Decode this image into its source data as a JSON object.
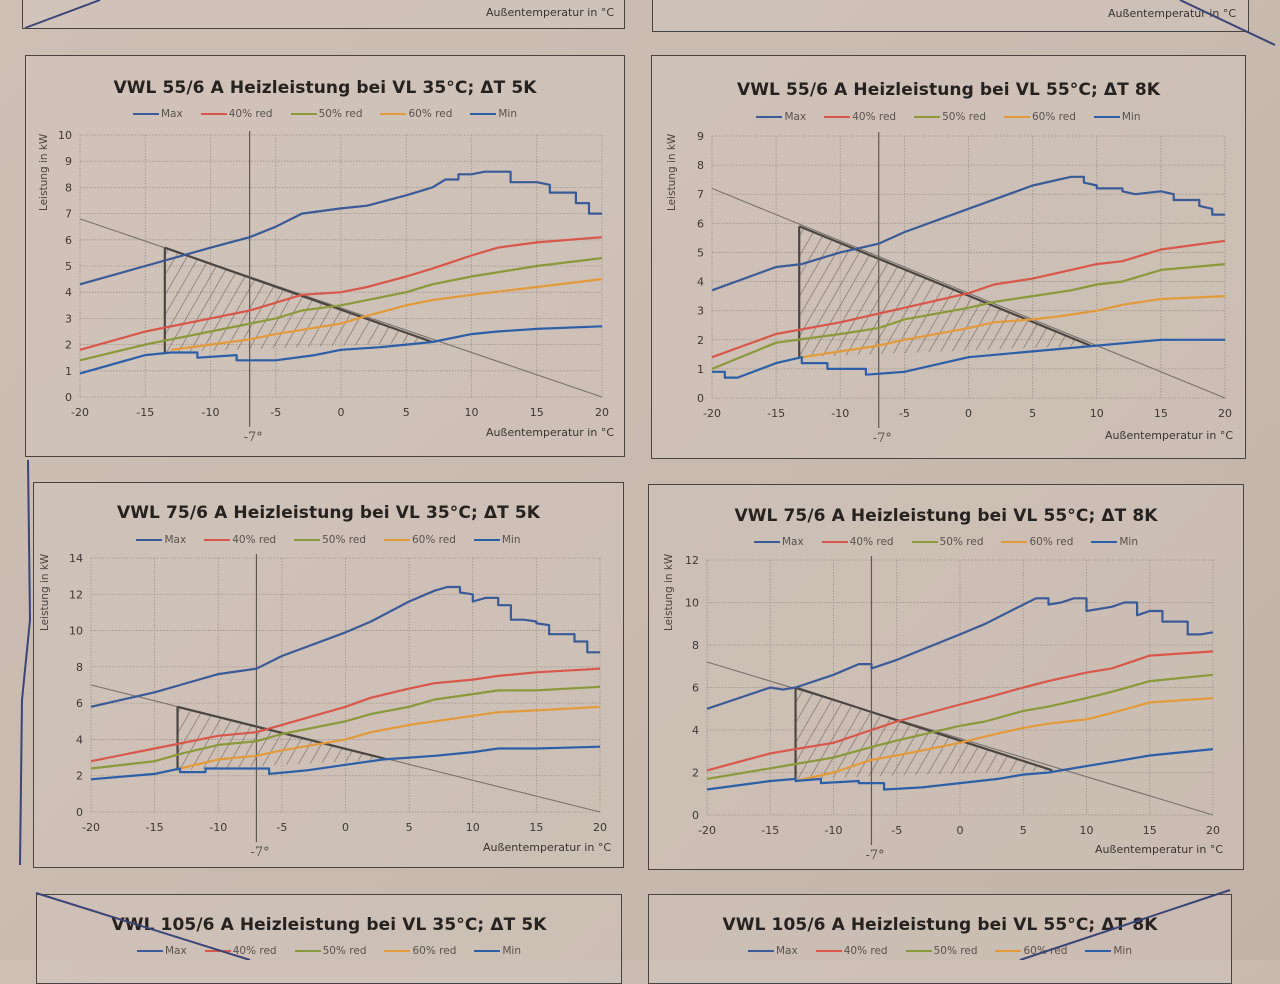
{
  "page": {
    "top_partial": {
      "left_xlabel": "Außentemperatur in °C",
      "right_xlabel": "Außentemperatur in °C"
    },
    "bottom_partial": {
      "left_title": "VWL 105/6 A Heizleistung bei VL 35°C; ΔT 5K",
      "right_title": "VWL 105/6 A Heizleistung bei VL 55°C; ΔT 8K",
      "legend": [
        "Max",
        "40% red",
        "50% red",
        "60% red",
        "Min"
      ]
    },
    "handwritten_note": "-7°"
  },
  "colors": {
    "Max": "#3b5b98",
    "40% red": "#d9574a",
    "50% red": "#8a9a3a",
    "60% red": "#e39a3a",
    "Min": "#2c5fa8",
    "grid": "#9c938b",
    "pencil": "#4c4642"
  },
  "chart_data": [
    {
      "type": "line",
      "title": "VWL 55/6 A Heizleistung bei VL 35°C; ΔT 5K",
      "xlabel": "Außentemperatur in °C",
      "ylabel": "Leistung in kW",
      "xlim": [
        -20,
        20
      ],
      "ylim": [
        0,
        10
      ],
      "xticks": [
        -20,
        -15,
        -10,
        -5,
        0,
        5,
        10,
        15,
        20
      ],
      "yticks": [
        0,
        1,
        2,
        3,
        4,
        5,
        6,
        7,
        8,
        9,
        10
      ],
      "grid": true,
      "legend": "top",
      "series": [
        {
          "name": "Max",
          "x": [
            -20,
            -15,
            -10,
            -7,
            -5,
            -3,
            0,
            2,
            5,
            7,
            8,
            9,
            9,
            10,
            11,
            13,
            13,
            15,
            16,
            16,
            18,
            18,
            19,
            19,
            20
          ],
          "y": [
            4.3,
            5.0,
            5.7,
            6.1,
            6.5,
            7.0,
            7.2,
            7.3,
            7.7,
            8.0,
            8.3,
            8.3,
            8.5,
            8.5,
            8.6,
            8.6,
            8.2,
            8.2,
            8.1,
            7.8,
            7.8,
            7.4,
            7.4,
            7.0,
            7.0
          ]
        },
        {
          "name": "40% red",
          "x": [
            -20,
            -15,
            -10,
            -7,
            -5,
            -3,
            0,
            2,
            5,
            7,
            10,
            12,
            15,
            20
          ],
          "y": [
            1.8,
            2.5,
            3.0,
            3.3,
            3.6,
            3.9,
            4.0,
            4.2,
            4.6,
            4.9,
            5.4,
            5.7,
            5.9,
            6.1
          ]
        },
        {
          "name": "50% red",
          "x": [
            -20,
            -15,
            -10,
            -5,
            -3,
            0,
            2,
            5,
            7,
            10,
            15,
            20
          ],
          "y": [
            1.4,
            2.0,
            2.5,
            3.0,
            3.3,
            3.5,
            3.7,
            4.0,
            4.3,
            4.6,
            5.0,
            5.3
          ]
        },
        {
          "name": "60% red",
          "x": [
            -13,
            -10,
            -7,
            -5,
            0,
            2,
            5,
            7,
            10,
            15,
            20
          ],
          "y": [
            1.8,
            2.0,
            2.2,
            2.4,
            2.8,
            3.1,
            3.5,
            3.7,
            3.9,
            4.2,
            4.5
          ]
        },
        {
          "name": "Min",
          "x": [
            -20,
            -15,
            -13,
            -11,
            -11,
            -8,
            -8,
            -5,
            -2,
            0,
            3,
            5,
            7,
            10,
            12,
            15,
            20
          ],
          "y": [
            0.9,
            1.6,
            1.7,
            1.7,
            1.5,
            1.6,
            1.4,
            1.4,
            1.6,
            1.8,
            1.9,
            2.0,
            2.1,
            2.4,
            2.5,
            2.6,
            2.7
          ]
        }
      ],
      "annotations": {
        "load_line": {
          "x": [
            -20,
            20
          ],
          "y": [
            6.8,
            0
          ]
        },
        "triangle": {
          "x": [
            -13.5,
            -13.5,
            7
          ],
          "y": [
            5.7,
            1.7,
            2.1
          ]
        },
        "vertical_marker_x": -7,
        "note": "-7°"
      }
    },
    {
      "type": "line",
      "title": "VWL 55/6 A Heizleistung bei VL 55°C; ΔT 8K",
      "xlabel": "Außentemperatur in °C",
      "ylabel": "Leistung in kW",
      "xlim": [
        -20,
        20
      ],
      "ylim": [
        0,
        9
      ],
      "xticks": [
        -20,
        -15,
        -10,
        -5,
        0,
        5,
        10,
        15,
        20
      ],
      "yticks": [
        0,
        1,
        2,
        3,
        4,
        5,
        6,
        7,
        8,
        9
      ],
      "grid": true,
      "legend": "top",
      "series": [
        {
          "name": "Max",
          "x": [
            -20,
            -15,
            -13,
            -10,
            -7,
            -5,
            0,
            5,
            8,
            9,
            9,
            10,
            10,
            12,
            12,
            13,
            13,
            15,
            15,
            16,
            16,
            18,
            18,
            19,
            19,
            20
          ],
          "y": [
            3.7,
            4.5,
            4.6,
            5.0,
            5.3,
            5.7,
            6.5,
            7.3,
            7.6,
            7.6,
            7.4,
            7.3,
            7.2,
            7.2,
            7.1,
            7.0,
            7.0,
            7.1,
            7.1,
            7.0,
            6.8,
            6.8,
            6.6,
            6.5,
            6.3,
            6.3
          ]
        },
        {
          "name": "40% red",
          "x": [
            -20,
            -15,
            -10,
            -7,
            -5,
            0,
            2,
            5,
            8,
            10,
            12,
            15,
            20
          ],
          "y": [
            1.4,
            2.2,
            2.6,
            2.9,
            3.1,
            3.6,
            3.9,
            4.1,
            4.4,
            4.6,
            4.7,
            5.1,
            5.4
          ]
        },
        {
          "name": "50% red",
          "x": [
            -20,
            -15,
            -10,
            -7,
            -5,
            0,
            2,
            5,
            8,
            10,
            12,
            15,
            20
          ],
          "y": [
            1.0,
            1.9,
            2.2,
            2.4,
            2.7,
            3.1,
            3.3,
            3.5,
            3.7,
            3.9,
            4.0,
            4.4,
            4.6
          ]
        },
        {
          "name": "60% red",
          "x": [
            -13,
            -10,
            -7,
            -5,
            0,
            2,
            5,
            7,
            10,
            12,
            15,
            20
          ],
          "y": [
            1.4,
            1.6,
            1.8,
            2.0,
            2.4,
            2.6,
            2.7,
            2.8,
            3.0,
            3.2,
            3.4,
            3.5
          ]
        },
        {
          "name": "Min",
          "x": [
            -20,
            -19,
            -19,
            -18,
            -15,
            -13,
            -13,
            -11,
            -11,
            -8,
            -8,
            -5,
            0,
            5,
            10,
            15,
            20
          ],
          "y": [
            0.9,
            0.9,
            0.7,
            0.7,
            1.2,
            1.4,
            1.2,
            1.2,
            1.0,
            1.0,
            0.8,
            0.9,
            1.4,
            1.6,
            1.8,
            2.0,
            2.0
          ]
        }
      ],
      "annotations": {
        "load_line": {
          "x": [
            -20,
            20
          ],
          "y": [
            7.2,
            0
          ]
        },
        "triangle": {
          "x": [
            -13.2,
            -13.2,
            9.5
          ],
          "y": [
            5.9,
            1.4,
            1.8
          ]
        },
        "vertical_marker_x": -7,
        "note": "-7°"
      }
    },
    {
      "type": "line",
      "title": "VWL 75/6 A Heizleistung bei VL 35°C; ΔT 5K",
      "xlabel": "Außentemperatur in °C",
      "ylabel": "Leistung in kW",
      "xlim": [
        -20,
        20
      ],
      "ylim": [
        0,
        14
      ],
      "xticks": [
        -20,
        -15,
        -10,
        -5,
        0,
        5,
        10,
        15,
        20
      ],
      "yticks": [
        0,
        2,
        4,
        6,
        8,
        10,
        12,
        14
      ],
      "grid": true,
      "legend": "top",
      "series": [
        {
          "name": "Max",
          "x": [
            -20,
            -15,
            -13,
            -10,
            -7,
            -5,
            0,
            2,
            5,
            7,
            8,
            9,
            9,
            10,
            10,
            11,
            12,
            12,
            13,
            13,
            14,
            15,
            15,
            16,
            16,
            18,
            18,
            19,
            19,
            20
          ],
          "y": [
            5.8,
            6.6,
            7.0,
            7.6,
            7.9,
            8.6,
            9.9,
            10.5,
            11.6,
            12.2,
            12.4,
            12.4,
            12.1,
            12.0,
            11.6,
            11.8,
            11.8,
            11.4,
            11.4,
            10.6,
            10.6,
            10.5,
            10.4,
            10.3,
            9.8,
            9.8,
            9.4,
            9.4,
            8.8,
            8.8
          ]
        },
        {
          "name": "40% red",
          "x": [
            -20,
            -15,
            -10,
            -7,
            -5,
            0,
            2,
            5,
            7,
            10,
            12,
            15,
            20
          ],
          "y": [
            2.8,
            3.5,
            4.2,
            4.4,
            4.8,
            5.8,
            6.3,
            6.8,
            7.1,
            7.3,
            7.5,
            7.7,
            7.9
          ]
        },
        {
          "name": "50% red",
          "x": [
            -20,
            -15,
            -13,
            -10,
            -7,
            -5,
            0,
            2,
            5,
            7,
            10,
            12,
            15,
            20
          ],
          "y": [
            2.4,
            2.8,
            3.2,
            3.7,
            3.9,
            4.3,
            5.0,
            5.4,
            5.8,
            6.2,
            6.5,
            6.7,
            6.7,
            6.9
          ]
        },
        {
          "name": "60% red",
          "x": [
            -13,
            -10,
            -7,
            -5,
            0,
            2,
            5,
            7,
            10,
            12,
            15,
            20
          ],
          "y": [
            2.4,
            2.9,
            3.1,
            3.4,
            4.0,
            4.4,
            4.8,
            5.0,
            5.3,
            5.5,
            5.6,
            5.8
          ]
        },
        {
          "name": "Min",
          "x": [
            -20,
            -15,
            -13,
            -13,
            -11,
            -11,
            -7,
            -6,
            -6,
            -3,
            0,
            3,
            5,
            7,
            10,
            12,
            15,
            20
          ],
          "y": [
            1.8,
            2.1,
            2.4,
            2.2,
            2.2,
            2.4,
            2.4,
            2.4,
            2.1,
            2.3,
            2.6,
            2.9,
            3.0,
            3.1,
            3.3,
            3.5,
            3.5,
            3.6
          ]
        }
      ],
      "annotations": {
        "load_line": {
          "x": [
            -20,
            20
          ],
          "y": [
            7.0,
            0
          ]
        },
        "triangle": {
          "x": [
            -13.2,
            -13.2,
            3.3
          ],
          "y": [
            5.8,
            2.3,
            2.9
          ]
        },
        "vertical_marker_x": -7,
        "note": "-7°"
      }
    },
    {
      "type": "line",
      "title": "VWL 75/6 A Heizleistung bei VL 55°C; ΔT 8K",
      "xlabel": "Außentemperatur in °C",
      "ylabel": "Leistung in kW",
      "xlim": [
        -20,
        20
      ],
      "ylim": [
        0,
        12
      ],
      "xticks": [
        -20,
        -15,
        -10,
        -5,
        0,
        5,
        10,
        15,
        20
      ],
      "yticks": [
        0,
        2,
        4,
        6,
        8,
        10,
        12
      ],
      "grid": true,
      "legend": "top",
      "series": [
        {
          "name": "Max",
          "x": [
            -20,
            -17,
            -15,
            -14,
            -13,
            -10,
            -8,
            -7,
            -7,
            -5,
            0,
            2,
            5,
            6,
            7,
            7,
            8,
            9,
            10,
            10,
            12,
            13,
            14,
            14,
            15,
            16,
            16,
            18,
            18,
            19,
            20
          ],
          "y": [
            5.0,
            5.6,
            6.0,
            5.9,
            6.0,
            6.6,
            7.1,
            7.1,
            6.9,
            7.3,
            8.5,
            9.0,
            9.9,
            10.2,
            10.2,
            9.9,
            10.0,
            10.2,
            10.2,
            9.6,
            9.8,
            10.0,
            10.0,
            9.4,
            9.6,
            9.6,
            9.1,
            9.1,
            8.5,
            8.5,
            8.6
          ]
        },
        {
          "name": "40% red",
          "x": [
            -20,
            -15,
            -13,
            -10,
            -7,
            -5,
            0,
            2,
            5,
            7,
            10,
            12,
            15,
            20
          ],
          "y": [
            2.1,
            2.9,
            3.1,
            3.4,
            4.0,
            4.4,
            5.2,
            5.5,
            6.0,
            6.3,
            6.7,
            6.9,
            7.5,
            7.7
          ]
        },
        {
          "name": "50% red",
          "x": [
            -20,
            -15,
            -13,
            -10,
            -7,
            -5,
            0,
            2,
            5,
            7,
            10,
            12,
            15,
            20
          ],
          "y": [
            1.7,
            2.2,
            2.4,
            2.7,
            3.2,
            3.5,
            4.2,
            4.4,
            4.9,
            5.1,
            5.5,
            5.8,
            6.3,
            6.6
          ]
        },
        {
          "name": "60% red",
          "x": [
            -13,
            -10,
            -7,
            -5,
            0,
            2,
            5,
            7,
            10,
            12,
            15,
            20
          ],
          "y": [
            1.6,
            2.0,
            2.6,
            2.8,
            3.4,
            3.7,
            4.1,
            4.3,
            4.5,
            4.8,
            5.3,
            5.5
          ]
        },
        {
          "name": "Min",
          "x": [
            -20,
            -15,
            -13,
            -13,
            -11,
            -11,
            -8,
            -8,
            -6,
            -6,
            -3,
            0,
            3,
            5,
            7,
            10,
            12,
            15,
            20
          ],
          "y": [
            1.2,
            1.6,
            1.7,
            1.6,
            1.7,
            1.5,
            1.6,
            1.5,
            1.5,
            1.2,
            1.3,
            1.5,
            1.7,
            1.9,
            2.0,
            2.3,
            2.5,
            2.8,
            3.1
          ]
        }
      ],
      "annotations": {
        "load_line": {
          "x": [
            -20,
            20
          ],
          "y": [
            7.2,
            0
          ]
        },
        "triangle": {
          "x": [
            -13,
            -13,
            7.3
          ],
          "y": [
            6.0,
            1.7,
            2.1
          ]
        },
        "vertical_marker_x": -7,
        "note": "-7°"
      }
    }
  ]
}
